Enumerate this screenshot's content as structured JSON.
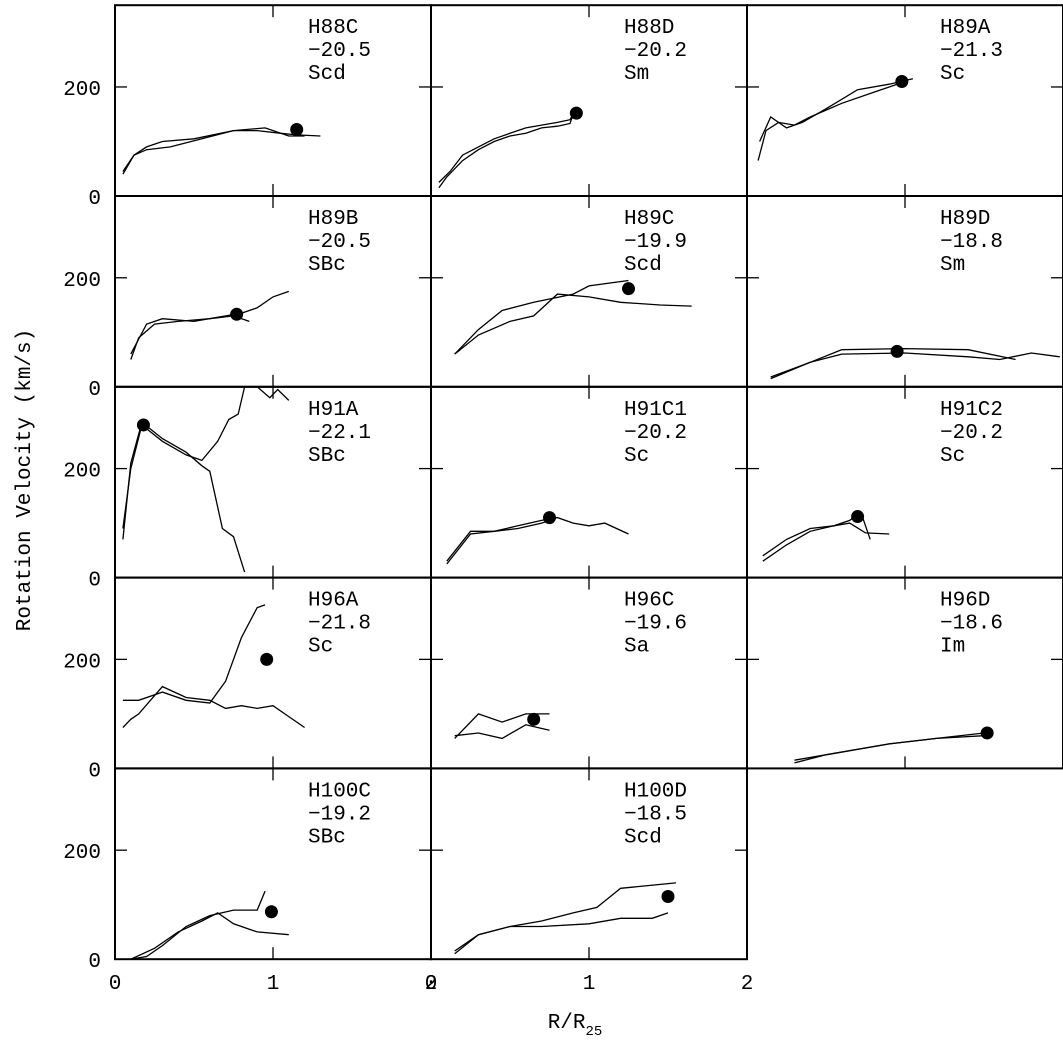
{
  "figure": {
    "ylabel": "Rotation Velocity (km/s)",
    "xlabel": "R/R",
    "xlabel_subscript": "25"
  },
  "chart_data": [
    {
      "type": "line",
      "title": "H88C",
      "annotations": [
        "−20.5",
        "Scd"
      ],
      "xlim": [
        0,
        2
      ],
      "ylim": [
        0,
        350
      ],
      "xticks": [
        0,
        1,
        2
      ],
      "yticks": [
        0,
        200
      ],
      "xticklabels": false,
      "yticklabels": true,
      "color": "#000000",
      "series": [
        {
          "x": [
            0.05,
            0.12,
            0.2,
            0.3,
            0.5,
            0.75,
            0.9,
            1.05,
            1.15,
            1.3
          ],
          "values": [
            40,
            75,
            90,
            100,
            105,
            120,
            120,
            115,
            112,
            110
          ]
        },
        {
          "x": [
            0.05,
            0.12,
            0.2,
            0.35,
            0.55,
            0.75,
            0.95,
            1.1,
            1.2
          ],
          "values": [
            45,
            75,
            85,
            90,
            105,
            120,
            125,
            110,
            110
          ]
        }
      ],
      "marker": {
        "x": 1.15,
        "y": 122
      }
    },
    {
      "type": "line",
      "title": "H88D",
      "annotations": [
        "−20.2",
        "Sm"
      ],
      "xlim": [
        0,
        2
      ],
      "ylim": [
        0,
        350
      ],
      "xticks": [
        0,
        1,
        2
      ],
      "yticks": [
        0,
        200
      ],
      "xticklabels": false,
      "yticklabels": false,
      "color": "#000000",
      "series": [
        {
          "x": [
            0.05,
            0.1,
            0.2,
            0.3,
            0.4,
            0.5,
            0.6,
            0.7,
            0.8,
            0.88,
            0.9
          ],
          "values": [
            15,
            35,
            65,
            85,
            100,
            110,
            115,
            125,
            128,
            133,
            150
          ]
        },
        {
          "x": [
            0.05,
            0.12,
            0.2,
            0.3,
            0.4,
            0.5,
            0.6,
            0.7,
            0.8,
            0.88,
            0.9
          ],
          "values": [
            25,
            45,
            75,
            90,
            105,
            115,
            125,
            130,
            135,
            140,
            150
          ]
        }
      ],
      "marker": {
        "x": 0.92,
        "y": 152
      }
    },
    {
      "type": "line",
      "title": "H89A",
      "annotations": [
        "−21.3",
        "Sc"
      ],
      "xlim": [
        0,
        2
      ],
      "ylim": [
        0,
        350
      ],
      "xticks": [
        0,
        1,
        2
      ],
      "yticks": [
        0,
        200
      ],
      "xticklabels": false,
      "yticklabels": false,
      "color": "#000000",
      "series": [
        {
          "x": [
            0.07,
            0.12,
            0.2,
            0.3,
            0.4,
            0.6,
            0.8,
            0.9,
            1.0
          ],
          "values": [
            65,
            120,
            135,
            130,
            145,
            170,
            190,
            200,
            210
          ]
        },
        {
          "x": [
            0.08,
            0.15,
            0.25,
            0.35,
            0.5,
            0.7,
            0.9,
            1.05
          ],
          "values": [
            100,
            145,
            125,
            135,
            160,
            195,
            205,
            215
          ]
        }
      ],
      "marker": {
        "x": 0.98,
        "y": 210
      }
    },
    {
      "type": "line",
      "title": "H89B",
      "annotations": [
        "−20.5",
        "SBc"
      ],
      "xlim": [
        0,
        2
      ],
      "ylim": [
        0,
        350
      ],
      "xticks": [
        0,
        1,
        2
      ],
      "yticks": [
        0,
        200
      ],
      "xticklabels": false,
      "yticklabels": true,
      "color": "#000000",
      "series": [
        {
          "x": [
            0.1,
            0.2,
            0.3,
            0.5,
            0.7,
            0.8,
            0.85,
            0.9,
            1.0,
            1.1
          ],
          "values": [
            60,
            115,
            125,
            120,
            130,
            135,
            140,
            145,
            165,
            175
          ]
        },
        {
          "x": [
            0.1,
            0.15,
            0.25,
            0.4,
            0.6,
            0.75,
            0.85
          ],
          "values": [
            50,
            90,
            115,
            120,
            125,
            130,
            120
          ]
        }
      ],
      "marker": {
        "x": 0.77,
        "y": 133
      }
    },
    {
      "type": "line",
      "title": "H89C",
      "annotations": [
        "−19.9",
        "Scd"
      ],
      "xlim": [
        0,
        2
      ],
      "ylim": [
        0,
        350
      ],
      "xticks": [
        0,
        1,
        2
      ],
      "yticks": [
        0,
        200
      ],
      "xticklabels": false,
      "yticklabels": false,
      "color": "#000000",
      "series": [
        {
          "x": [
            0.15,
            0.3,
            0.45,
            0.65,
            0.9,
            1.0,
            1.25
          ],
          "values": [
            60,
            105,
            140,
            155,
            170,
            185,
            195
          ]
        },
        {
          "x": [
            0.15,
            0.3,
            0.5,
            0.65,
            0.8,
            1.0,
            1.2,
            1.45,
            1.65
          ],
          "values": [
            60,
            95,
            120,
            130,
            170,
            165,
            155,
            150,
            148
          ]
        }
      ],
      "marker": {
        "x": 1.25,
        "y": 180
      }
    },
    {
      "type": "line",
      "title": "H89D",
      "annotations": [
        "−18.8",
        "Sm"
      ],
      "xlim": [
        0,
        2
      ],
      "ylim": [
        0,
        350
      ],
      "xticks": [
        0,
        1,
        2
      ],
      "yticks": [
        0,
        200
      ],
      "xticklabels": false,
      "yticklabels": false,
      "color": "#000000",
      "series": [
        {
          "x": [
            0.15,
            0.4,
            0.6,
            1.0,
            1.4,
            1.6,
            1.8,
            1.98
          ],
          "values": [
            15,
            45,
            60,
            62,
            55,
            50,
            62,
            55
          ]
        },
        {
          "x": [
            0.15,
            0.4,
            0.6,
            1.0,
            1.4,
            1.7
          ],
          "values": [
            18,
            45,
            68,
            70,
            68,
            50
          ]
        }
      ],
      "marker": {
        "x": 0.95,
        "y": 65
      }
    },
    {
      "type": "line",
      "title": "H91A",
      "annotations": [
        "−22.1",
        "SBc"
      ],
      "xlim": [
        0,
        2
      ],
      "ylim": [
        0,
        350
      ],
      "xticks": [
        0,
        1,
        2
      ],
      "yticks": [
        0,
        200
      ],
      "xticklabels": false,
      "yticklabels": true,
      "color": "#000000",
      "series": [
        {
          "x": [
            0.05,
            0.1,
            0.17,
            0.3,
            0.45,
            0.55,
            0.65,
            0.72,
            0.78,
            0.82,
            0.9,
            0.98,
            1.03,
            1.1
          ],
          "values": [
            90,
            200,
            280,
            250,
            225,
            215,
            250,
            290,
            300,
            350,
            350,
            330,
            345,
            325
          ]
        },
        {
          "x": [
            0.05,
            0.1,
            0.17,
            0.3,
            0.45,
            0.55,
            0.6,
            0.68,
            0.75,
            0.82
          ],
          "values": [
            70,
            210,
            285,
            255,
            230,
            205,
            195,
            90,
            75,
            10
          ]
        }
      ],
      "marker": {
        "x": 0.18,
        "y": 280
      }
    },
    {
      "type": "line",
      "title": "H91C1",
      "annotations": [
        "−20.2",
        "Sc"
      ],
      "xlim": [
        0,
        2
      ],
      "ylim": [
        0,
        350
      ],
      "xticks": [
        0,
        1,
        2
      ],
      "yticks": [
        0,
        200
      ],
      "xticklabels": false,
      "yticklabels": false,
      "color": "#000000",
      "series": [
        {
          "x": [
            0.1,
            0.25,
            0.4,
            0.55,
            0.7,
            0.8,
            0.9,
            1.0,
            1.1,
            1.25
          ],
          "values": [
            25,
            80,
            85,
            95,
            105,
            110,
            100,
            95,
            100,
            80
          ]
        },
        {
          "x": [
            0.1,
            0.25,
            0.4,
            0.55,
            0.7,
            0.75
          ],
          "values": [
            30,
            85,
            85,
            90,
            100,
            105
          ]
        }
      ],
      "marker": {
        "x": 0.75,
        "y": 110
      }
    },
    {
      "type": "line",
      "title": "H91C2",
      "annotations": [
        "−20.2",
        "Sc"
      ],
      "xlim": [
        0,
        2
      ],
      "ylim": [
        0,
        350
      ],
      "xticks": [
        0,
        1,
        2
      ],
      "yticks": [
        0,
        200
      ],
      "xticklabels": false,
      "yticklabels": false,
      "color": "#000000",
      "series": [
        {
          "x": [
            0.1,
            0.25,
            0.4,
            0.55,
            0.65,
            0.75,
            0.9
          ],
          "values": [
            30,
            60,
            85,
            95,
            100,
            82,
            80
          ]
        },
        {
          "x": [
            0.1,
            0.25,
            0.4,
            0.55,
            0.65,
            0.72,
            0.78
          ],
          "values": [
            40,
            70,
            90,
            95,
            105,
            120,
            70
          ]
        }
      ],
      "marker": {
        "x": 0.7,
        "y": 112
      }
    },
    {
      "type": "line",
      "title": "H96A",
      "annotations": [
        "−21.8",
        "Sc"
      ],
      "xlim": [
        0,
        2
      ],
      "ylim": [
        0,
        350
      ],
      "xticks": [
        0,
        1,
        2
      ],
      "yticks": [
        0,
        200
      ],
      "xticklabels": false,
      "yticklabels": true,
      "color": "#000000",
      "series": [
        {
          "x": [
            0.05,
            0.15,
            0.3,
            0.45,
            0.6,
            0.7,
            0.8,
            0.9,
            0.95
          ],
          "values": [
            125,
            125,
            140,
            125,
            120,
            160,
            240,
            295,
            300
          ]
        },
        {
          "x": [
            0.05,
            0.1,
            0.15,
            0.3,
            0.45,
            0.6,
            0.7,
            0.8,
            0.9,
            1.0,
            1.1,
            1.2
          ],
          "values": [
            75,
            90,
            100,
            150,
            130,
            125,
            110,
            115,
            110,
            115,
            95,
            75
          ]
        }
      ],
      "marker": {
        "x": 0.96,
        "y": 200
      }
    },
    {
      "type": "line",
      "title": "H96C",
      "annotations": [
        "−19.6",
        "Sa"
      ],
      "xlim": [
        0,
        2
      ],
      "ylim": [
        0,
        350
      ],
      "xticks": [
        0,
        1,
        2
      ],
      "yticks": [
        0,
        200
      ],
      "xticklabels": false,
      "yticklabels": false,
      "color": "#000000",
      "series": [
        {
          "x": [
            0.15,
            0.3,
            0.45,
            0.6,
            0.75
          ],
          "values": [
            55,
            100,
            85,
            100,
            100
          ]
        },
        {
          "x": [
            0.15,
            0.3,
            0.45,
            0.6,
            0.75
          ],
          "values": [
            60,
            65,
            55,
            80,
            70
          ]
        }
      ],
      "marker": {
        "x": 0.65,
        "y": 90
      }
    },
    {
      "type": "line",
      "title": "H96D",
      "annotations": [
        "−18.6",
        "Im"
      ],
      "xlim": [
        0,
        2
      ],
      "ylim": [
        0,
        350
      ],
      "xticks": [
        0,
        1,
        2
      ],
      "yticks": [
        0,
        200
      ],
      "xticklabels": false,
      "yticklabels": false,
      "color": "#000000",
      "series": [
        {
          "x": [
            0.3,
            0.6,
            0.9,
            1.2,
            1.5
          ],
          "values": [
            15,
            30,
            45,
            55,
            65
          ]
        },
        {
          "x": [
            0.3,
            0.5,
            0.9,
            1.2,
            1.5
          ],
          "values": [
            10,
            25,
            45,
            55,
            60
          ]
        }
      ],
      "marker": {
        "x": 1.52,
        "y": 65
      }
    },
    {
      "type": "line",
      "title": "H100C",
      "annotations": [
        "−19.2",
        "SBc"
      ],
      "xlim": [
        0,
        2
      ],
      "ylim": [
        0,
        350
      ],
      "xticks": [
        0,
        1,
        2
      ],
      "yticks": [
        0,
        200
      ],
      "xticklabels": true,
      "yticklabels": true,
      "color": "#000000",
      "series": [
        {
          "x": [
            0.1,
            0.2,
            0.3,
            0.45,
            0.6,
            0.75,
            0.9,
            0.95
          ],
          "values": [
            0,
            5,
            25,
            60,
            80,
            90,
            90,
            125
          ]
        },
        {
          "x": [
            0.1,
            0.25,
            0.4,
            0.55,
            0.65,
            0.75,
            0.9,
            1.1
          ],
          "values": [
            0,
            20,
            50,
            70,
            85,
            65,
            50,
            45
          ]
        }
      ],
      "marker": {
        "x": 0.99,
        "y": 87
      }
    },
    {
      "type": "line",
      "title": "H100D",
      "annotations": [
        "−18.5",
        "Scd"
      ],
      "xlim": [
        0,
        2
      ],
      "ylim": [
        0,
        350
      ],
      "xticks": [
        0,
        1,
        2
      ],
      "yticks": [
        0,
        200
      ],
      "xticklabels": true,
      "yticklabels": false,
      "color": "#000000",
      "series": [
        {
          "x": [
            0.15,
            0.3,
            0.5,
            0.7,
            0.9,
            1.05,
            1.2,
            1.55
          ],
          "values": [
            10,
            45,
            60,
            70,
            85,
            95,
            130,
            140
          ]
        },
        {
          "x": [
            0.15,
            0.3,
            0.5,
            0.7,
            1.0,
            1.2,
            1.4,
            1.5
          ],
          "values": [
            15,
            45,
            60,
            60,
            65,
            75,
            75,
            85
          ]
        }
      ],
      "marker": {
        "x": 1.5,
        "y": 115
      }
    }
  ]
}
